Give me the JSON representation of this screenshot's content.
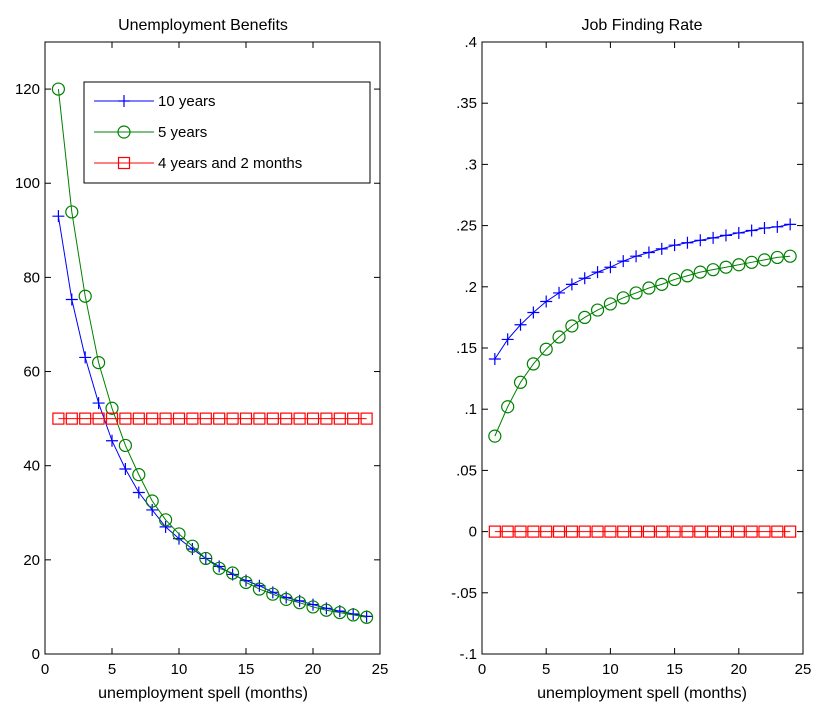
{
  "chart_data": [
    {
      "type": "line",
      "title": "Unemployment Benefits",
      "xlabel": "unemployment spell (months)",
      "ylabel": "",
      "xlim": [
        0,
        25
      ],
      "ylim": [
        0,
        130
      ],
      "xticks": [
        0,
        5,
        10,
        15,
        20,
        25
      ],
      "yticks": [
        0,
        20,
        40,
        60,
        80,
        100,
        120
      ],
      "legend": {
        "position": "top-right-inset"
      },
      "x": [
        1,
        2,
        3,
        4,
        5,
        6,
        7,
        8,
        9,
        10,
        11,
        12,
        13,
        14,
        15,
        16,
        17,
        18,
        19,
        20,
        21,
        22,
        23,
        24
      ],
      "series": [
        {
          "name": "10 years",
          "color": "#0000ff",
          "marker": "plus",
          "values": [
            93.0,
            75.3,
            63.0,
            53.3,
            45.3,
            39.3,
            34.3,
            30.6,
            27.0,
            24.5,
            22.3,
            20.3,
            18.6,
            16.9,
            15.6,
            14.5,
            13.1,
            12.0,
            11.3,
            10.5,
            9.7,
            9.1,
            8.5,
            8.0
          ]
        },
        {
          "name": "5 years",
          "color": "#008000",
          "marker": "circle",
          "values": [
            120.0,
            93.9,
            76.0,
            61.9,
            52.2,
            44.3,
            38.1,
            32.5,
            28.5,
            25.5,
            22.9,
            20.3,
            18.2,
            17.2,
            15.2,
            13.8,
            12.7,
            11.6,
            10.9,
            10.0,
            9.3,
            8.8,
            8.3,
            7.8
          ]
        },
        {
          "name": "4 years and 2 months",
          "color": "#ff0000",
          "marker": "square",
          "values": [
            50,
            50,
            50,
            50,
            50,
            50,
            50,
            50,
            50,
            50,
            50,
            50,
            50,
            50,
            50,
            50,
            50,
            50,
            50,
            50,
            50,
            50,
            50,
            50
          ]
        }
      ]
    },
    {
      "type": "line",
      "title": "Job Finding Rate",
      "xlabel": "unemployment spell (months)",
      "ylabel": "",
      "xlim": [
        0,
        25
      ],
      "ylim": [
        -0.1,
        0.4
      ],
      "xticks": [
        0,
        5,
        10,
        15,
        20,
        25
      ],
      "yticks": [
        -0.1,
        -0.05,
        0,
        0.05,
        0.1,
        0.15,
        0.2,
        0.25,
        0.3,
        0.35,
        0.4
      ],
      "x": [
        1,
        2,
        3,
        4,
        5,
        6,
        7,
        8,
        9,
        10,
        11,
        12,
        13,
        14,
        15,
        16,
        17,
        18,
        19,
        20,
        21,
        22,
        23,
        24
      ],
      "series": [
        {
          "color": "#0000ff",
          "marker": "plus",
          "values": [
            0.141,
            0.157,
            0.169,
            0.179,
            0.188,
            0.195,
            0.202,
            0.207,
            0.212,
            0.216,
            0.221,
            0.225,
            0.228,
            0.231,
            0.234,
            0.236,
            0.238,
            0.24,
            0.242,
            0.244,
            0.246,
            0.248,
            0.249,
            0.251
          ]
        },
        {
          "color": "#008000",
          "marker": "circle",
          "values": [
            0.078,
            0.102,
            0.122,
            0.137,
            0.149,
            0.159,
            0.168,
            0.175,
            0.181,
            0.186,
            0.191,
            0.195,
            0.199,
            0.202,
            0.206,
            0.209,
            0.212,
            0.214,
            0.216,
            0.218,
            0.22,
            0.222,
            0.224,
            0.225
          ]
        },
        {
          "color": "#ff0000",
          "marker": "square",
          "values": [
            0,
            0,
            0,
            0,
            0,
            0,
            0,
            0,
            0,
            0,
            0,
            0,
            0,
            0,
            0,
            0,
            0,
            0,
            0,
            0,
            0,
            0,
            0,
            0
          ]
        }
      ]
    }
  ]
}
